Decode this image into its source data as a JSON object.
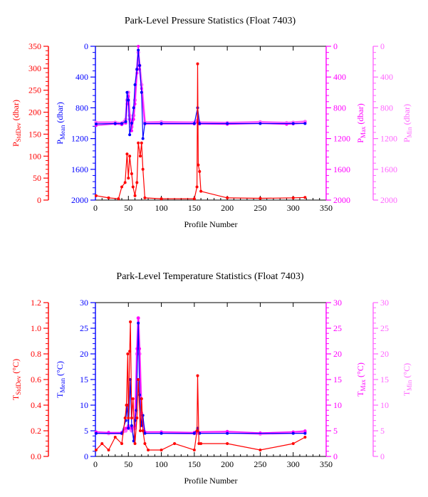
{
  "colors": {
    "stddev": "#ff0000",
    "mean": "#0000ff",
    "max": "#ff00ff",
    "min": "#ff66ff",
    "frame": "#000000"
  },
  "chart_data": [
    {
      "type": "scatter",
      "title": "Park-Level Pressure Statistics (Float 7403)",
      "xlabel": "Profile Number",
      "xlim": [
        0,
        350
      ],
      "x_ticks": [
        "0",
        "50",
        "100",
        "150",
        "200",
        "250",
        "300",
        "350"
      ],
      "axes": {
        "stddev": {
          "main": "P",
          "sub": "StdDev",
          "unit": " (dbar)",
          "range": [
            0,
            350
          ],
          "inverted": false,
          "ticks": [
            "0",
            "50",
            "100",
            "150",
            "200",
            "250",
            "300",
            "350"
          ]
        },
        "mean": {
          "main": "P",
          "sub": "Mean",
          "unit": " (dbar)",
          "range": [
            0,
            2000
          ],
          "inverted": true,
          "ticks": [
            "0",
            "400",
            "800",
            "1200",
            "1600",
            "2000"
          ]
        },
        "max": {
          "main": "P",
          "sub": "Max",
          "unit": " (dbar)",
          "range": [
            0,
            2000
          ],
          "inverted": true,
          "ticks": [
            "0",
            "400",
            "800",
            "1200",
            "1600",
            "2000"
          ]
        },
        "min": {
          "main": "P",
          "sub": "Min",
          "unit": " (dbar)",
          "range": [
            0,
            2000
          ],
          "inverted": true,
          "ticks": [
            "0",
            "400",
            "800",
            "1200",
            "1600",
            "2000"
          ]
        }
      },
      "series": [
        {
          "key": "min",
          "x": [
            1,
            30,
            40,
            46,
            48,
            50,
            52,
            55,
            58,
            60,
            63,
            65,
            67,
            70,
            75,
            100,
            150,
            155,
            158,
            200,
            250,
            290,
            300,
            318
          ],
          "y": [
            990,
            990,
            1000,
            950,
            700,
            600,
            900,
            1050,
            900,
            700,
            300,
            80,
            250,
            500,
            990,
            985,
            990,
            960,
            990,
            995,
            985,
            995,
            990,
            980
          ]
        },
        {
          "key": "max",
          "x": [
            1,
            30,
            40,
            46,
            48,
            50,
            52,
            55,
            58,
            60,
            63,
            65,
            67,
            70,
            75,
            100,
            150,
            155,
            158,
            200,
            250,
            290,
            300,
            318
          ],
          "y": [
            1030,
            1010,
            1020,
            1000,
            750,
            650,
            950,
            1100,
            950,
            750,
            350,
            0,
            300,
            550,
            1010,
            1010,
            1010,
            990,
            1010,
            1015,
            1005,
            1015,
            1010,
            1000
          ]
        },
        {
          "key": "mean",
          "x": [
            1,
            30,
            40,
            46,
            48,
            50,
            52,
            55,
            58,
            60,
            63,
            65,
            67,
            70,
            72,
            75,
            100,
            150,
            155,
            158,
            200,
            250,
            300,
            318
          ],
          "y": [
            1010,
            1005,
            1005,
            980,
            600,
            700,
            1150,
            1000,
            800,
            500,
            300,
            50,
            250,
            600,
            1200,
            1005,
            1005,
            1005,
            800,
            1005,
            1005,
            1005,
            1005,
            1005
          ]
        },
        {
          "key": "stddev",
          "x": [
            1,
            20,
            35,
            40,
            45,
            48,
            50,
            52,
            55,
            57,
            60,
            63,
            65,
            68,
            70,
            72,
            75,
            100,
            150,
            154,
            155,
            156,
            158,
            160,
            200,
            250,
            300,
            318
          ],
          "y": [
            10,
            5,
            3,
            30,
            40,
            105,
            50,
            100,
            60,
            30,
            10,
            40,
            130,
            100,
            130,
            70,
            5,
            3,
            3,
            30,
            310,
            80,
            65,
            20,
            5,
            4,
            5,
            6
          ]
        }
      ]
    },
    {
      "type": "scatter",
      "title": "Park-Level Temperature Statistics (Float 7403)",
      "xlabel": "Profile Number",
      "xlim": [
        0,
        350
      ],
      "x_ticks": [
        "0",
        "50",
        "100",
        "150",
        "200",
        "250",
        "300",
        "350"
      ],
      "axes": {
        "stddev": {
          "main": "T",
          "sub": "StdDev",
          "unit": " (°C)",
          "range": [
            0,
            1.2
          ],
          "inverted": false,
          "ticks": [
            "0.0",
            "0.2",
            "0.4",
            "0.6",
            "0.8",
            "1.0",
            "1.2"
          ]
        },
        "mean": {
          "main": "T",
          "sub": "Mean",
          "unit": " (°C)",
          "range": [
            0,
            30
          ],
          "inverted": false,
          "ticks": [
            "0",
            "5",
            "10",
            "15",
            "20",
            "25",
            "30"
          ]
        },
        "max": {
          "main": "T",
          "sub": "Max",
          "unit": " (°C)",
          "range": [
            0,
            30
          ],
          "inverted": false,
          "ticks": [
            "0",
            "5",
            "10",
            "15",
            "20",
            "25",
            "30"
          ]
        },
        "min": {
          "main": "T",
          "sub": "Min",
          "unit": " (°C)",
          "range": [
            0,
            30
          ],
          "inverted": false,
          "ticks": [
            "0",
            "5",
            "10",
            "15",
            "20",
            "25",
            "30"
          ]
        }
      },
      "series": [
        {
          "key": "min",
          "x": [
            1,
            20,
            40,
            46,
            50,
            55,
            60,
            63,
            65,
            67,
            70,
            75,
            100,
            150,
            155,
            200,
            250,
            300,
            318
          ],
          "y": [
            4.6,
            4.5,
            4.5,
            5.0,
            5.5,
            5.0,
            5.5,
            20,
            27,
            20,
            8,
            4.6,
            4.6,
            4.5,
            4.6,
            4.7,
            4.4,
            4.6,
            4.8
          ]
        },
        {
          "key": "max",
          "x": [
            1,
            20,
            40,
            46,
            50,
            55,
            60,
            63,
            65,
            67,
            70,
            75,
            100,
            150,
            155,
            200,
            250,
            300,
            318
          ],
          "y": [
            4.8,
            4.7,
            4.7,
            5.5,
            6,
            5.5,
            6,
            21,
            27,
            21,
            8.5,
            4.8,
            4.8,
            4.7,
            4.8,
            4.9,
            4.6,
            4.8,
            5.0
          ]
        },
        {
          "key": "mean",
          "x": [
            1,
            40,
            46,
            48,
            50,
            53,
            55,
            58,
            60,
            62,
            65,
            67,
            70,
            72,
            75,
            100,
            150,
            155,
            158,
            200,
            300,
            318
          ],
          "y": [
            4.5,
            4.5,
            7,
            10,
            5.5,
            15,
            6,
            3,
            7,
            9,
            26,
            12,
            6,
            8,
            4.5,
            4.5,
            4.5,
            5.5,
            4.5,
            4.5,
            4.5,
            4.5
          ]
        },
        {
          "key": "stddev",
          "x": [
            1,
            10,
            20,
            30,
            40,
            45,
            47,
            49,
            50,
            52,
            53,
            55,
            57,
            60,
            63,
            65,
            68,
            70,
            72,
            75,
            80,
            100,
            120,
            150,
            154,
            155,
            157,
            160,
            200,
            250,
            300,
            318
          ],
          "y": [
            0.05,
            0.1,
            0.05,
            0.15,
            0.1,
            0.3,
            0.4,
            0.8,
            0.3,
            0.82,
            1.05,
            0.3,
            0.45,
            0.1,
            0.3,
            0.6,
            0.2,
            0.45,
            0.2,
            0.1,
            0.05,
            0.05,
            0.1,
            0.05,
            0.2,
            0.63,
            0.1,
            0.1,
            0.1,
            0.05,
            0.1,
            0.15
          ]
        }
      ]
    }
  ]
}
